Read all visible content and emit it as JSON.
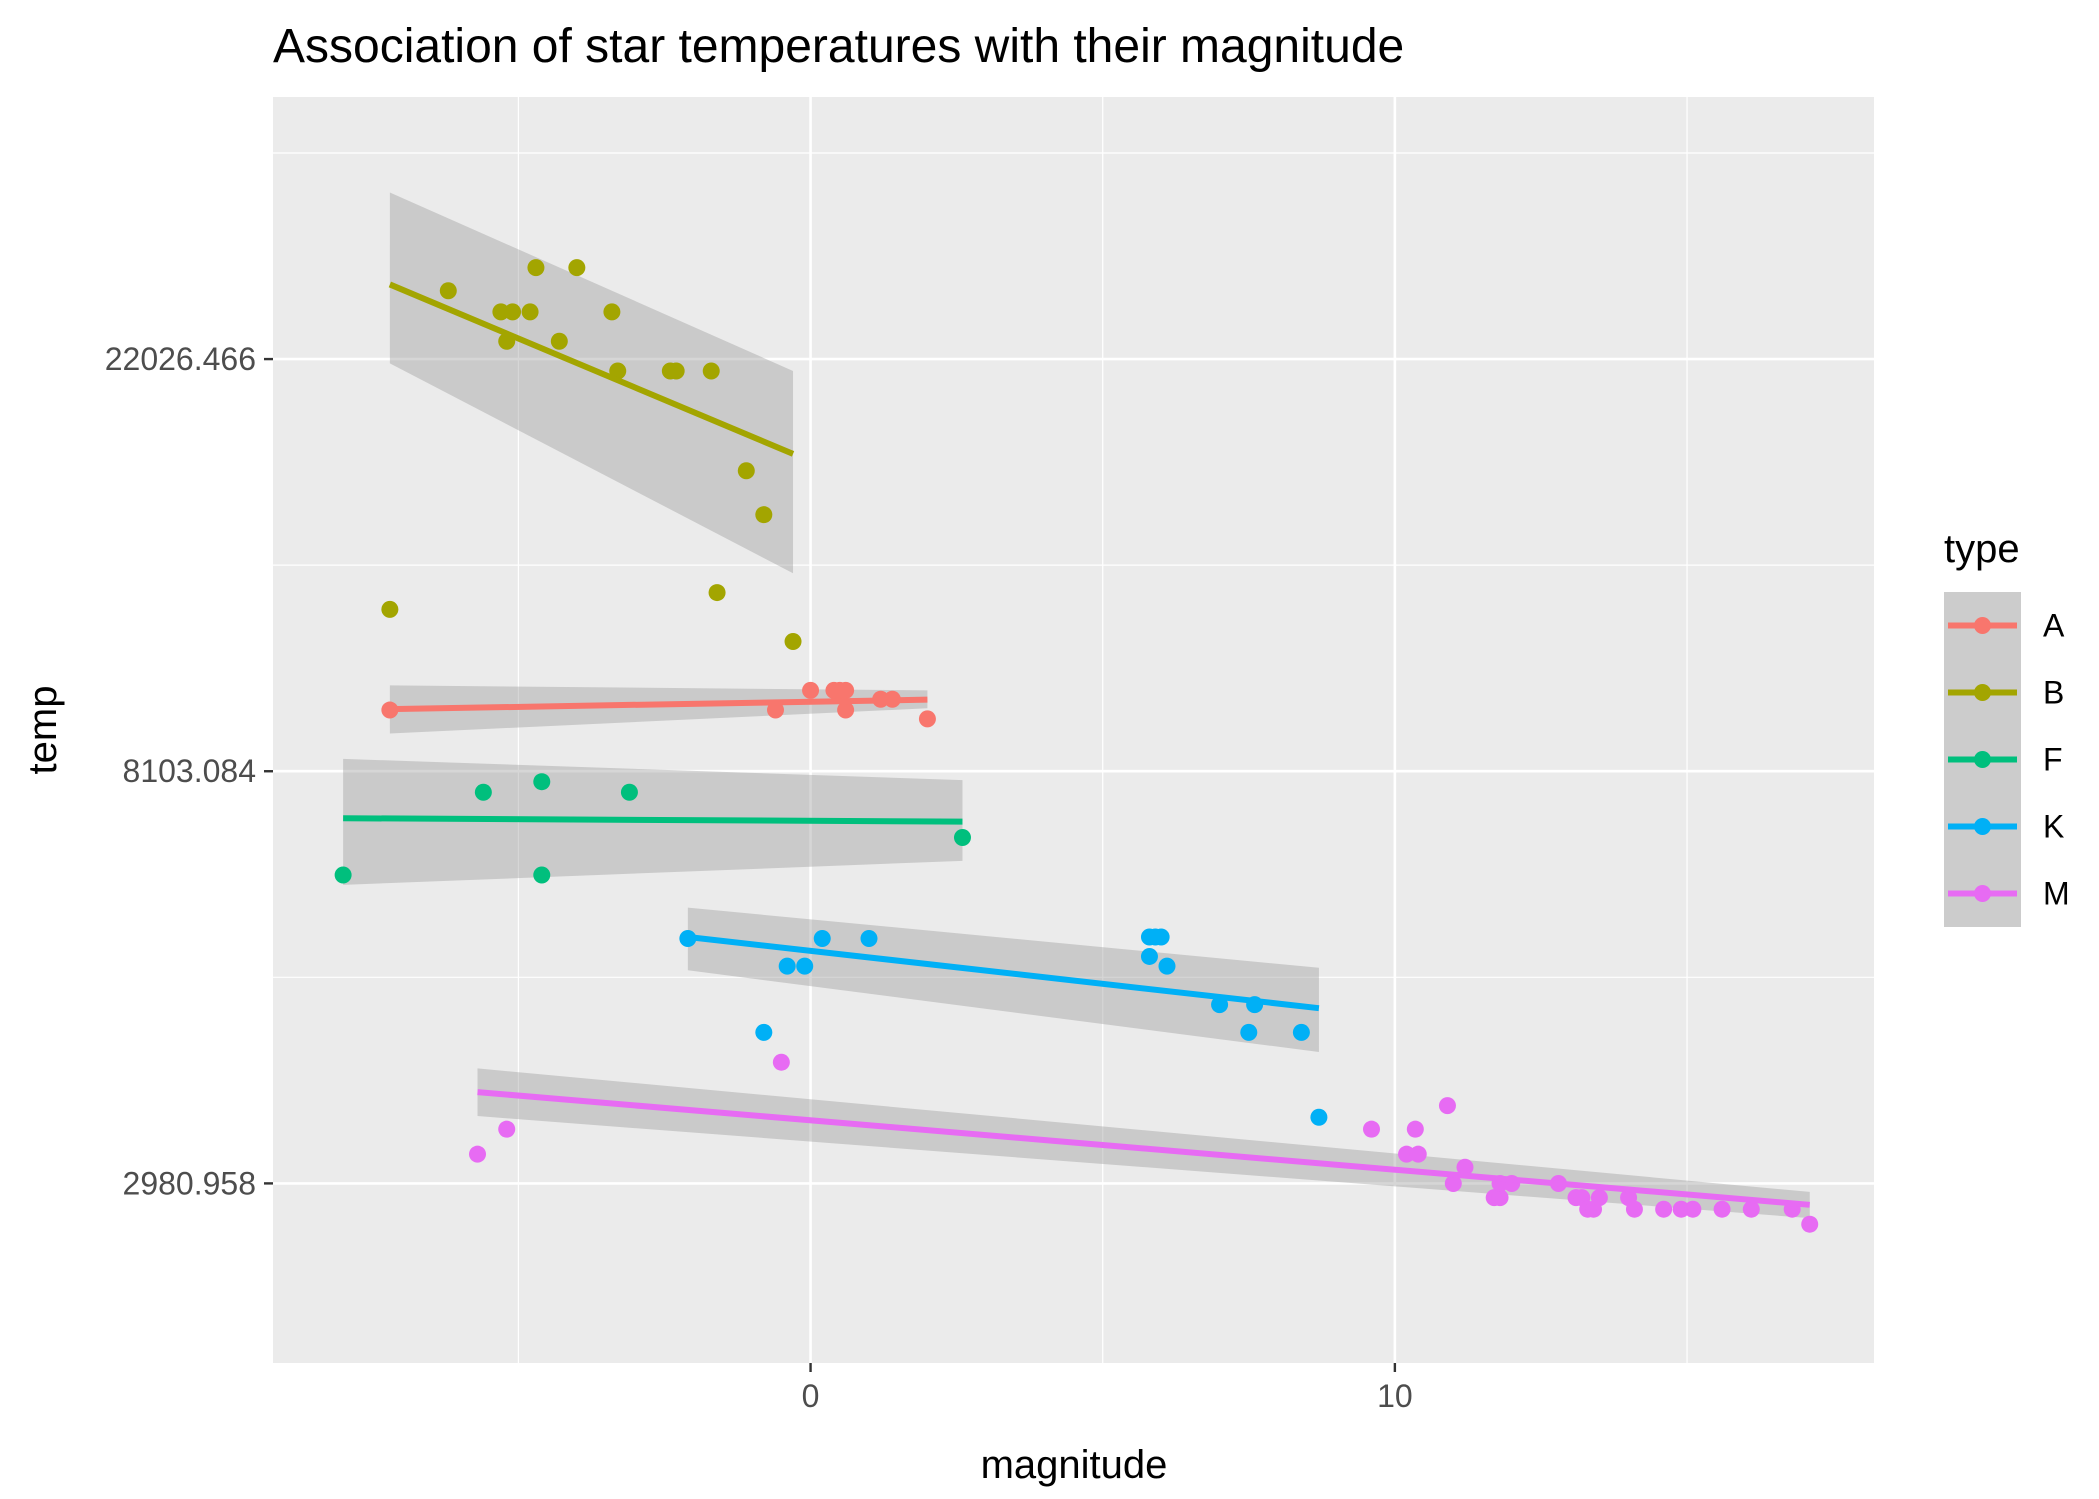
{
  "chart_data": {
    "type": "scatter",
    "title": "Association of star temperatures with their magnitude",
    "xlabel": "magnitude",
    "ylabel": "temp",
    "y_scale": "log",
    "xlim": [
      -9.2,
      18.2
    ],
    "ylim": [
      1928,
      41600
    ],
    "x_ticks": [
      {
        "value": 0,
        "label": "0"
      },
      {
        "value": 10,
        "label": "10"
      }
    ],
    "y_ticks": [
      {
        "value": 2980.958,
        "label": "2980.958"
      },
      {
        "value": 8103.084,
        "label": "8103.084"
      },
      {
        "value": 22026.466,
        "label": "22026.466"
      }
    ],
    "grid": true,
    "legend": {
      "title": "type",
      "position": "right"
    },
    "series": [
      {
        "name": "A",
        "color": "#F8766D",
        "points": [
          [
            -7.2,
            9400
          ],
          [
            -0.6,
            9400
          ],
          [
            0.0,
            9860
          ],
          [
            0.4,
            9860
          ],
          [
            0.5,
            9860
          ],
          [
            0.6,
            9860
          ],
          [
            0.6,
            9400
          ],
          [
            1.2,
            9650
          ],
          [
            1.4,
            9650
          ],
          [
            2.0,
            9200
          ]
        ],
        "fit": {
          "x": [
            -7.2,
            2.0
          ],
          "y": [
            9420,
            9640
          ]
        },
        "ci": {
          "lower": [
            8880,
            9440
          ],
          "upper": [
            9980,
            9860
          ]
        }
      },
      {
        "name": "B",
        "color": "#A3A500",
        "points": [
          [
            -7.2,
            12000
          ],
          [
            -6.2,
            26000
          ],
          [
            -5.3,
            24700
          ],
          [
            -5.1,
            24700
          ],
          [
            -4.8,
            24700
          ],
          [
            -5.2,
            23000
          ],
          [
            -4.3,
            23000
          ],
          [
            -4.7,
            27500
          ],
          [
            -4.0,
            27500
          ],
          [
            -3.4,
            24700
          ],
          [
            -3.3,
            21400
          ],
          [
            -2.4,
            21400
          ],
          [
            -2.3,
            21400
          ],
          [
            -1.7,
            21400
          ],
          [
            -1.1,
            16800
          ],
          [
            -0.8,
            15100
          ],
          [
            -1.6,
            12500
          ],
          [
            -0.3,
            11100
          ]
        ],
        "fit": {
          "x": [
            -7.2,
            -0.3
          ],
          "y": [
            26400,
            17500
          ]
        },
        "ci": {
          "lower": [
            21800,
            13100
          ],
          "upper": [
            33000,
            21400
          ]
        }
      },
      {
        "name": "F",
        "color": "#00BF7D",
        "points": [
          [
            -8.0,
            6300
          ],
          [
            -5.6,
            7700
          ],
          [
            -4.6,
            7900
          ],
          [
            -4.6,
            6300
          ],
          [
            -3.1,
            7700
          ],
          [
            2.6,
            6900
          ]
        ],
        "fit": {
          "x": [
            -8.0,
            2.6
          ],
          "y": [
            7230,
            7170
          ]
        },
        "ci": {
          "lower": [
            6150,
            6520
          ],
          "upper": [
            8350,
            7930
          ]
        }
      },
      {
        "name": "K",
        "color": "#00B0F6",
        "points": [
          [
            -2.1,
            5400
          ],
          [
            -0.8,
            4300
          ],
          [
            -0.4,
            5050
          ],
          [
            -0.1,
            5050
          ],
          [
            0.2,
            5400
          ],
          [
            1.0,
            5400
          ],
          [
            5.8,
            5420
          ],
          [
            5.8,
            5170
          ],
          [
            5.9,
            5420
          ],
          [
            6.0,
            5420
          ],
          [
            6.1,
            5050
          ],
          [
            7.0,
            4600
          ],
          [
            7.5,
            4300
          ],
          [
            7.6,
            4600
          ],
          [
            8.4,
            4300
          ],
          [
            8.7,
            3500
          ]
        ],
        "fit": {
          "x": [
            -2.1,
            8.7
          ],
          "y": [
            5420,
            4560
          ]
        },
        "ci": {
          "lower": [
            5000,
            4100
          ],
          "upper": [
            5820,
            5030
          ]
        }
      },
      {
        "name": "M",
        "color": "#E76BF3",
        "points": [
          [
            -5.7,
            3200
          ],
          [
            -5.2,
            3400
          ],
          [
            -0.5,
            4000
          ],
          [
            9.6,
            3400
          ],
          [
            10.2,
            3200
          ],
          [
            10.4,
            3200
          ],
          [
            10.35,
            3400
          ],
          [
            10.9,
            3600
          ],
          [
            11.0,
            2980
          ],
          [
            11.2,
            3100
          ],
          [
            11.7,
            2880
          ],
          [
            11.8,
            2880
          ],
          [
            11.8,
            2980
          ],
          [
            12.0,
            2980
          ],
          [
            12.8,
            2980
          ],
          [
            13.1,
            2880
          ],
          [
            13.2,
            2880
          ],
          [
            13.3,
            2800
          ],
          [
            13.4,
            2800
          ],
          [
            13.5,
            2880
          ],
          [
            14.0,
            2880
          ],
          [
            14.1,
            2800
          ],
          [
            14.6,
            2800
          ],
          [
            14.9,
            2800
          ],
          [
            15.1,
            2800
          ],
          [
            15.6,
            2800
          ],
          [
            16.1,
            2800
          ],
          [
            16.8,
            2800
          ],
          [
            17.1,
            2700
          ]
        ],
        "fit": {
          "x": [
            -5.7,
            17.1
          ],
          "y": [
            3720,
            2830
          ]
        },
        "ci": {
          "lower": [
            3510,
            2740
          ],
          "upper": [
            3940,
            2920
          ]
        }
      }
    ]
  }
}
